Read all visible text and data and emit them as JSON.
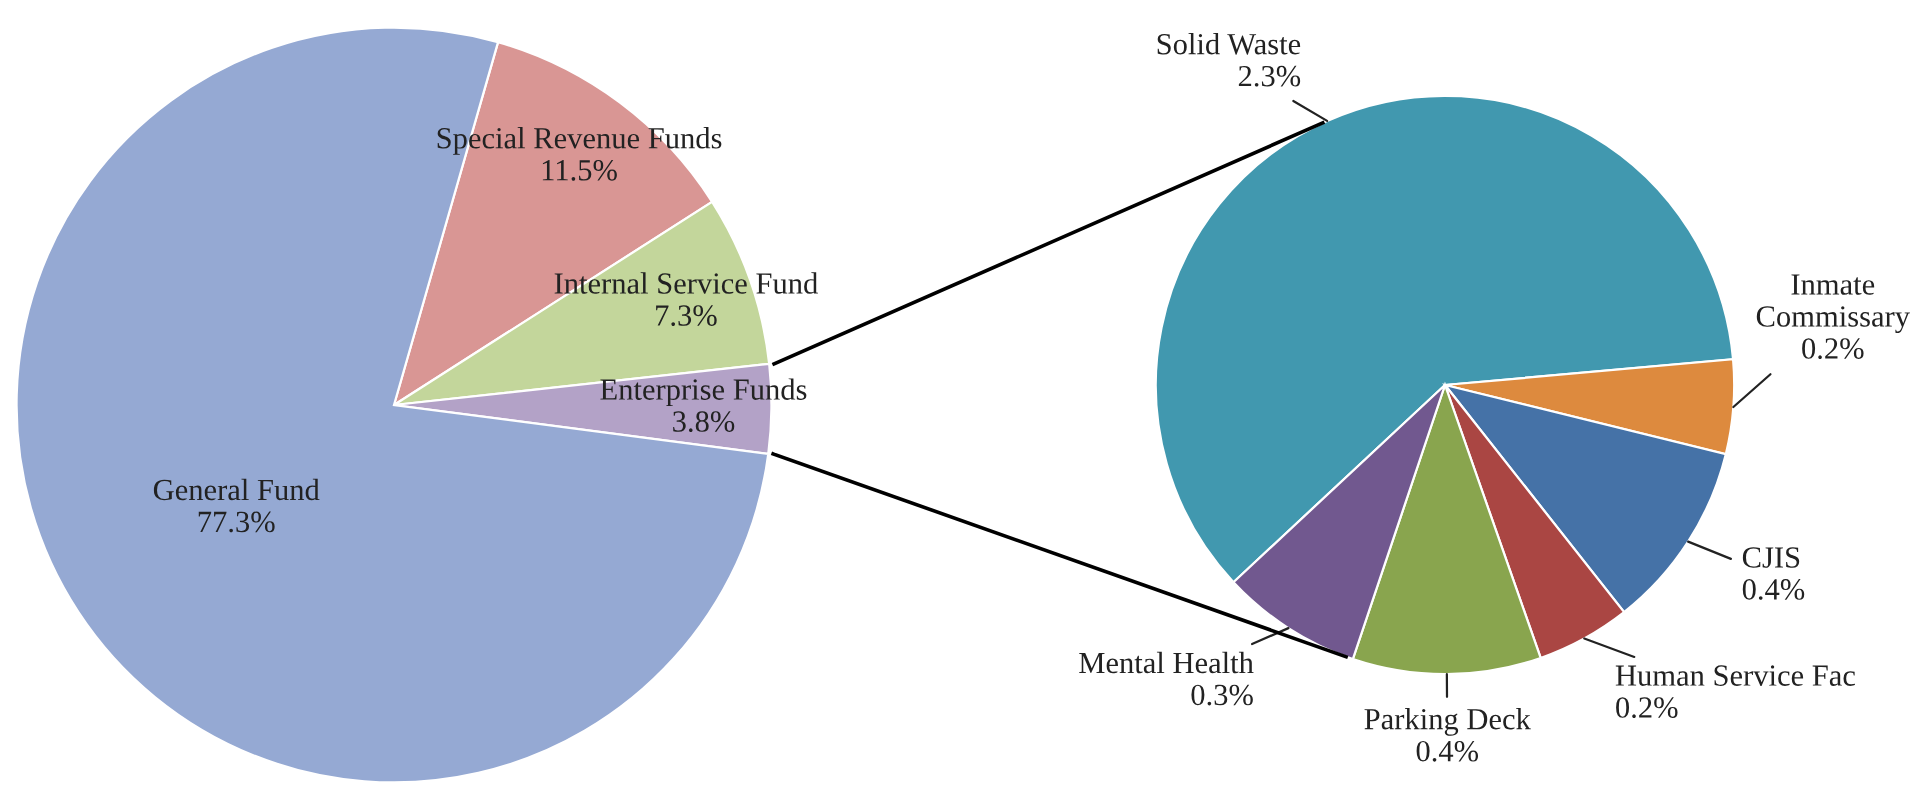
{
  "chart_data": [
    {
      "type": "pie",
      "categories": [
        "Special Revenue Funds",
        "Internal Service Fund",
        "Enterprise Funds",
        "General Fund"
      ],
      "values": [
        11.5,
        7.3,
        3.8,
        77.3
      ],
      "colors": [
        "#d99694",
        "#c3d69b",
        "#b3a2c7",
        "#95a9d3"
      ],
      "value_labels": [
        "11.5%",
        "7.3%",
        "3.8%",
        "77.3%"
      ]
    },
    {
      "type": "pie",
      "categories": [
        "Solid Waste",
        "Inmate\nCommissary",
        "CJIS",
        "Human Service Fac",
        "Parking Deck",
        "Mental Health"
      ],
      "values": [
        2.3,
        0.2,
        0.4,
        0.2,
        0.4,
        0.3
      ],
      "colors": [
        "#4198af",
        "#dd8a3e",
        "#4572a7",
        "#aa4643",
        "#89a54e",
        "#71588f"
      ],
      "value_labels": [
        "2.3%",
        "0.2%",
        "0.4%",
        "0.2%",
        "0.4%",
        "0.3%"
      ]
    }
  ]
}
